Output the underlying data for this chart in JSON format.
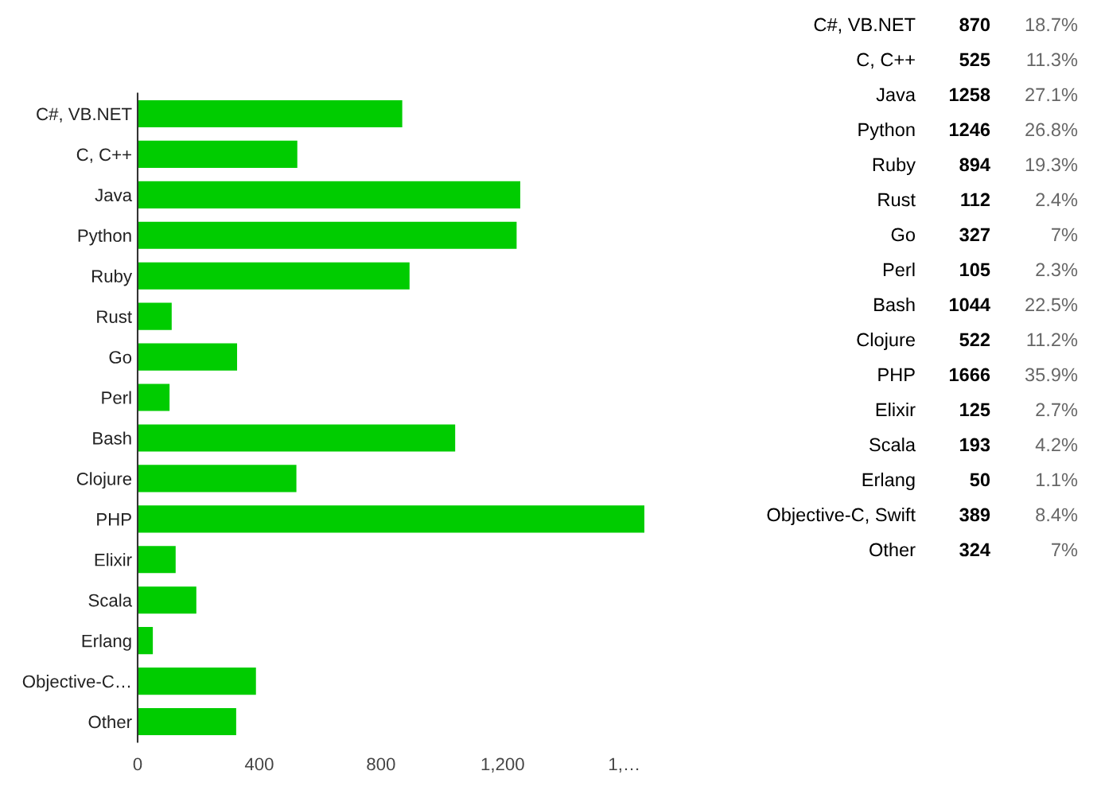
{
  "chart_data": [
    {
      "type": "bar",
      "orientation": "horizontal",
      "categories": [
        "C#, VB.NET",
        "C, C++",
        "Java",
        "Python",
        "Ruby",
        "Rust",
        "Go",
        "Perl",
        "Bash",
        "Clojure",
        "PHP",
        "Elixir",
        "Scala",
        "Erlang",
        "Objective-C…",
        "Other"
      ],
      "values": [
        870,
        525,
        1258,
        1246,
        894,
        112,
        327,
        105,
        1044,
        522,
        1666,
        125,
        193,
        50,
        389,
        324
      ],
      "color": "#00cc00",
      "xlim": [
        0,
        1666
      ],
      "xticks": [
        0,
        400,
        800,
        {
          "value": 1200,
          "label": "1,200"
        },
        {
          "value": 1600,
          "label": "1,…"
        }
      ]
    },
    {
      "type": "other",
      "categories": [
        "C#, VB.NET",
        "C, C++",
        "Java",
        "Python",
        "Ruby",
        "Rust",
        "Go",
        "Perl",
        "Bash",
        "Clojure",
        "PHP",
        "Elixir",
        "Scala",
        "Erlang",
        "Objective-C, Swift",
        "Other"
      ],
      "values": [
        870,
        525,
        1258,
        1246,
        894,
        112,
        327,
        105,
        1044,
        522,
        1666,
        125,
        193,
        50,
        389,
        324
      ],
      "color": "#000000",
      "data_labels": true,
      "annotations": [
        "18.7%",
        "11.3%",
        "27.1%",
        "26.8%",
        "19.3%",
        "2.4%",
        "7%",
        "2.3%",
        "22.5%",
        "11.2%",
        "35.9%",
        "2.7%",
        "4.2%",
        "1.1%",
        "8.4%",
        "7%"
      ]
    }
  ]
}
